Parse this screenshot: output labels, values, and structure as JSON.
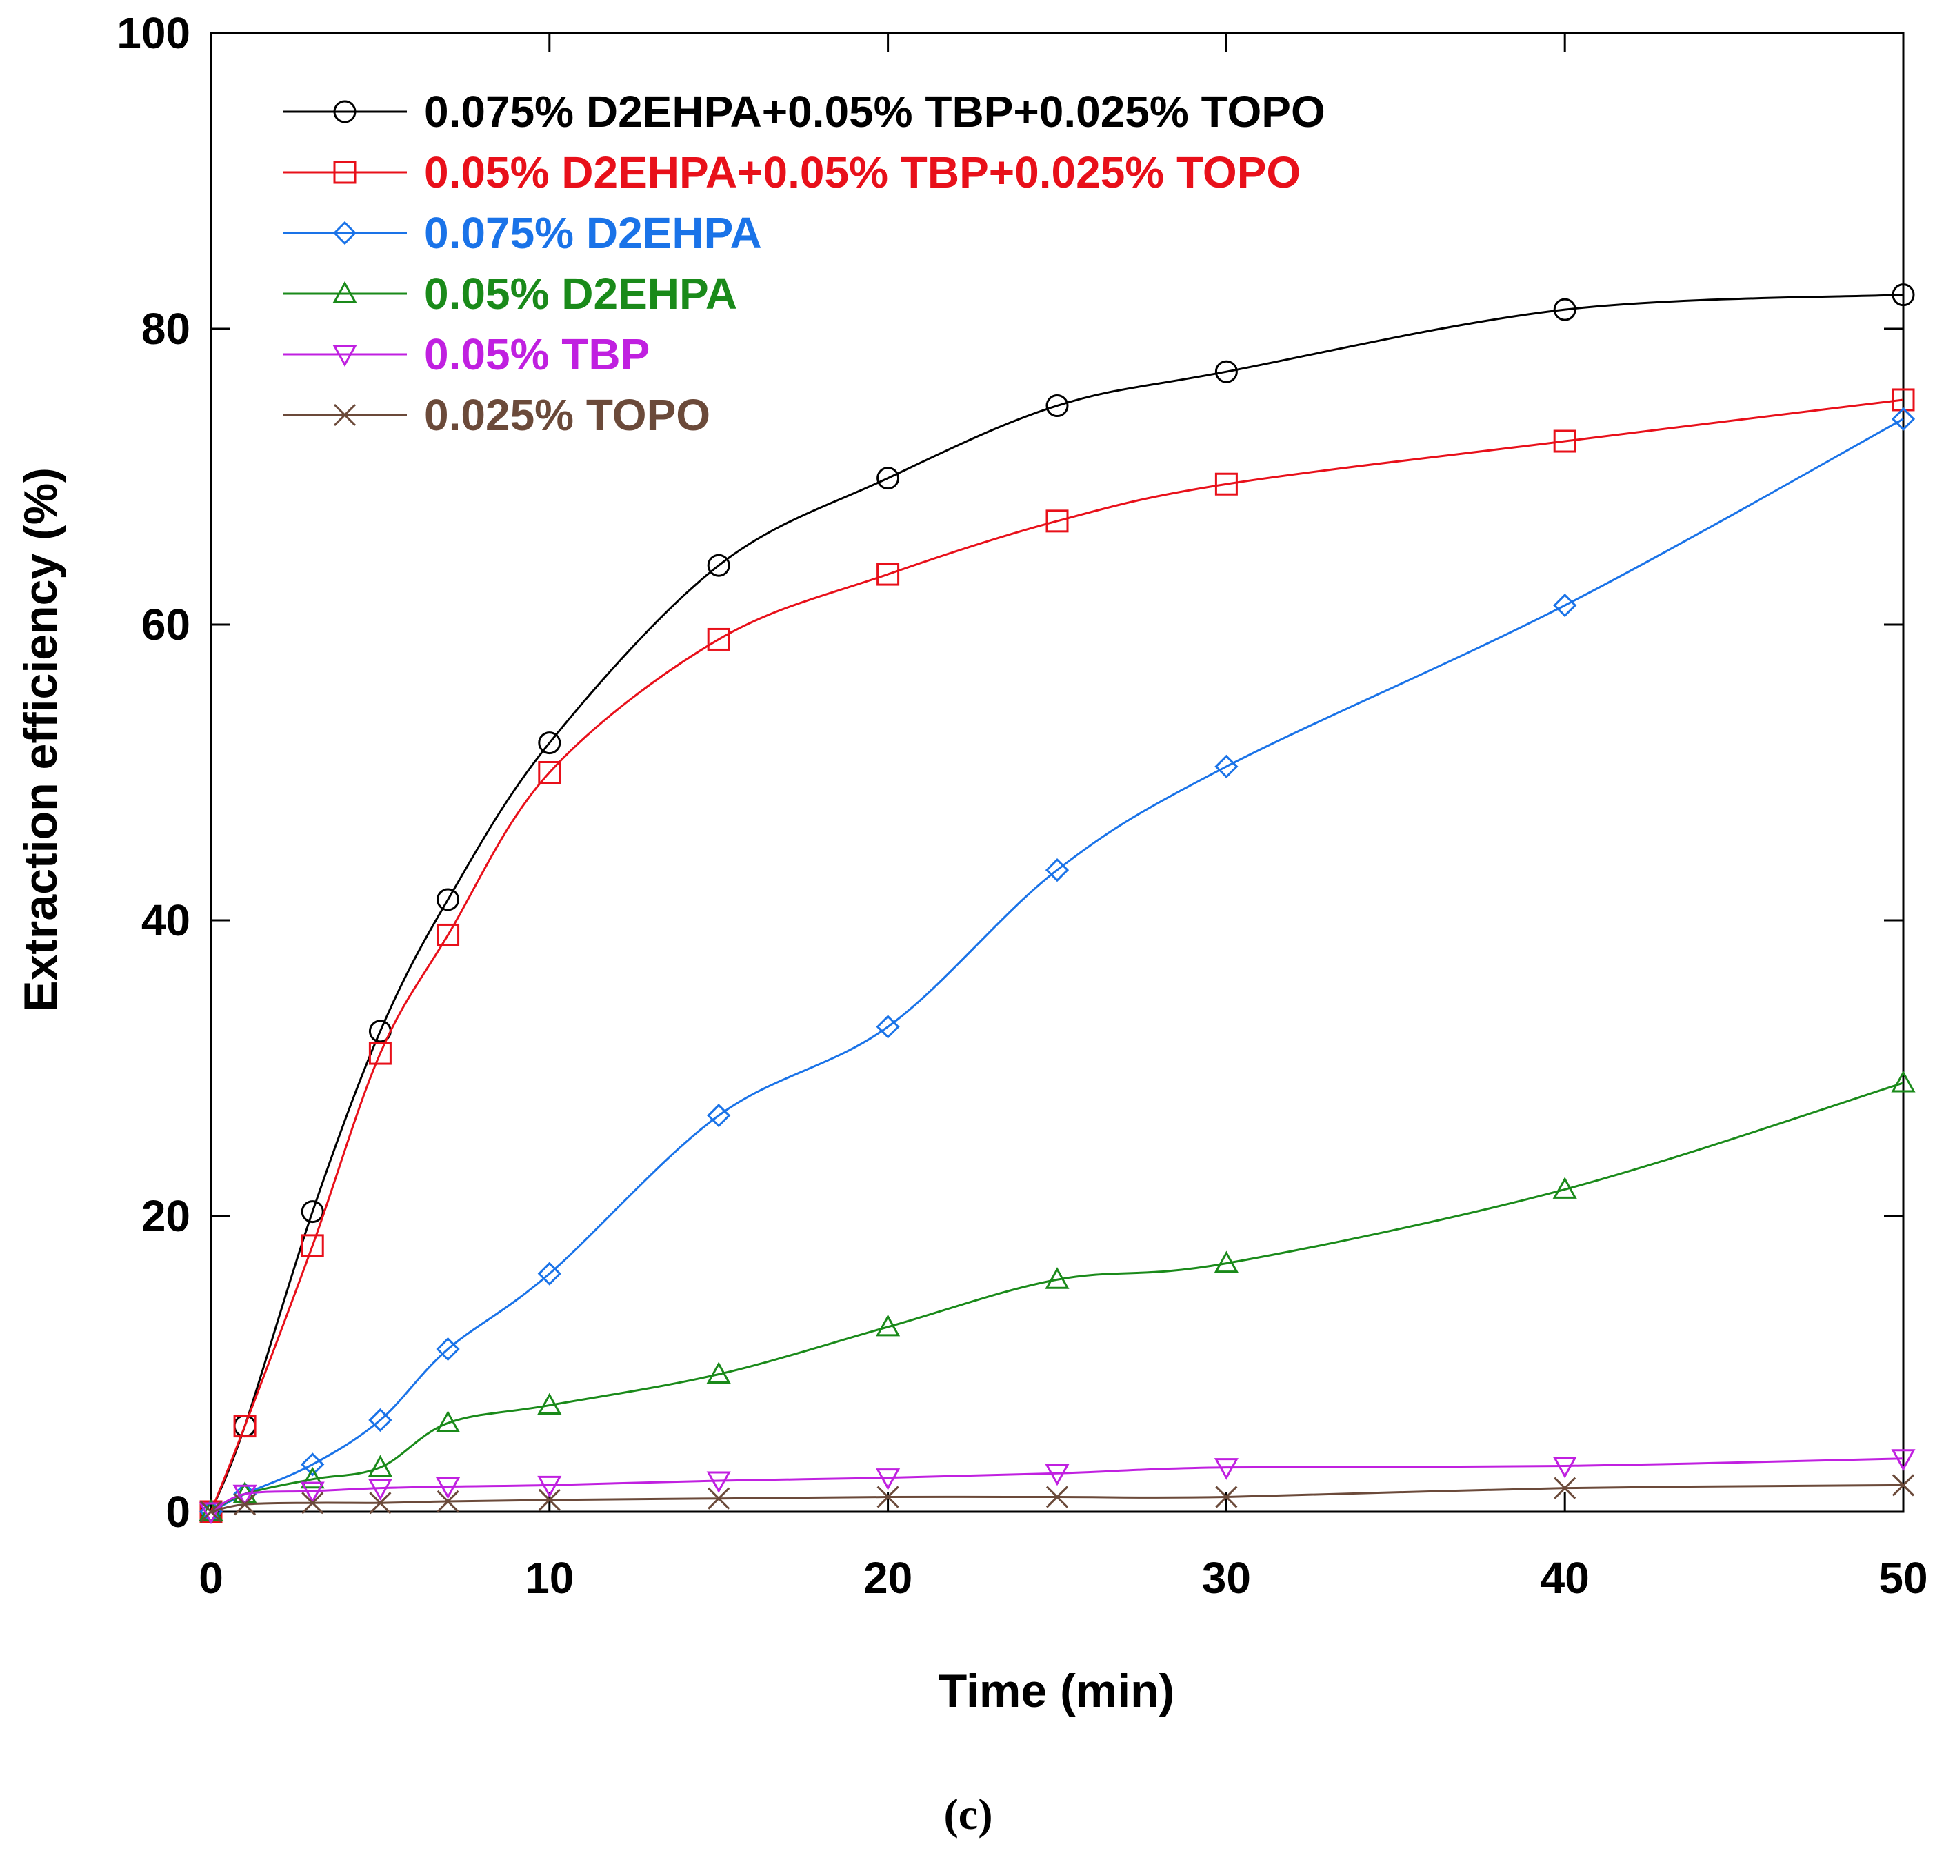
{
  "chart_data": {
    "type": "line",
    "title": "",
    "xlabel": "Time (min)",
    "ylabel": "Extraction efficiency (%)",
    "xlim": [
      0,
      50
    ],
    "ylim": [
      0,
      100
    ],
    "xticks": [
      0,
      10,
      20,
      30,
      40,
      50
    ],
    "yticks": [
      0,
      20,
      40,
      60,
      80,
      100
    ],
    "grid": false,
    "legend_position": "top-left",
    "caption": "(c)",
    "series": [
      {
        "name": "0.075% D2EHPA+0.05% TBP+0.025% TOPO",
        "color": "#000000",
        "marker": "circle",
        "x": [
          0,
          1,
          3,
          5,
          7,
          10,
          15,
          20,
          25,
          30,
          40,
          50
        ],
        "values": [
          0,
          5.8,
          20.3,
          32.5,
          41.4,
          52.0,
          64.0,
          69.9,
          74.8,
          77.1,
          81.3,
          82.3
        ]
      },
      {
        "name": "0.05% D2EHPA+0.05% TBP+0.025% TOPO",
        "color": "#e8101a",
        "marker": "square",
        "x": [
          0,
          1,
          3,
          5,
          7,
          10,
          15,
          20,
          25,
          30,
          40,
          50
        ],
        "values": [
          0,
          5.8,
          18.0,
          31.0,
          39.0,
          50.0,
          59.0,
          63.4,
          67.0,
          69.5,
          72.4,
          75.2
        ]
      },
      {
        "name": "0.075% D2EHPA",
        "color": "#1a73e8",
        "marker": "diamond",
        "x": [
          0,
          1,
          3,
          5,
          7,
          10,
          15,
          20,
          25,
          30,
          40,
          50
        ],
        "values": [
          0,
          1.2,
          3.2,
          6.2,
          11.0,
          16.1,
          26.8,
          32.8,
          43.4,
          50.4,
          61.3,
          73.9
        ]
      },
      {
        "name": "0.05% D2EHPA",
        "color": "#1a8a1a",
        "marker": "triangle-up",
        "x": [
          0,
          1,
          3,
          5,
          7,
          10,
          15,
          20,
          25,
          30,
          40,
          50
        ],
        "values": [
          0,
          1.2,
          2.2,
          3.0,
          6.0,
          7.2,
          9.3,
          12.5,
          15.7,
          16.8,
          21.8,
          29.0
        ]
      },
      {
        "name": "0.05% TBP",
        "color": "#c020e0",
        "marker": "triangle-down",
        "x": [
          0,
          1,
          3,
          5,
          7,
          10,
          15,
          20,
          25,
          30,
          40,
          50
        ],
        "values": [
          0,
          1.2,
          1.4,
          1.6,
          1.7,
          1.8,
          2.1,
          2.3,
          2.6,
          3.0,
          3.1,
          3.6
        ]
      },
      {
        "name": "0.025% TOPO",
        "color": "#6b4a3a",
        "marker": "x",
        "x": [
          0,
          1,
          3,
          5,
          7,
          10,
          15,
          20,
          25,
          30,
          40,
          50
        ],
        "values": [
          0,
          0.5,
          0.6,
          0.6,
          0.7,
          0.8,
          0.9,
          1.0,
          1.0,
          1.0,
          1.6,
          1.8
        ]
      }
    ]
  }
}
